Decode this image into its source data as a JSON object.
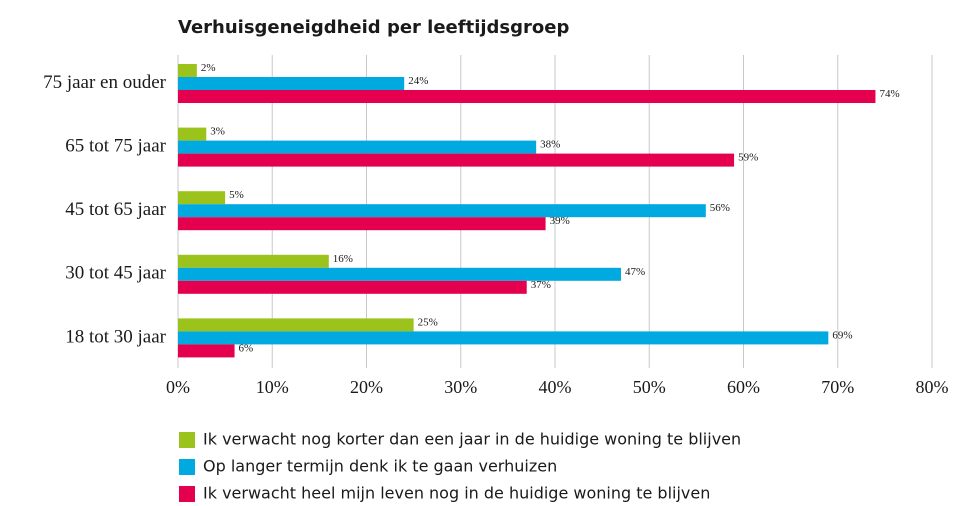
{
  "chart_data": {
    "type": "bar",
    "orientation": "horizontal",
    "title": "Verhuisgeneigdheid per leeftijdsgroep",
    "categories": [
      "75 jaar en ouder",
      "65 tot 75 jaar",
      "45 tot 65 jaar",
      "30 tot 45 jaar",
      "18 tot 30 jaar"
    ],
    "series": [
      {
        "name": "Ik verwacht nog korter dan een jaar in de huidige woning te blijven",
        "color": "#9bc31c",
        "values": [
          2,
          3,
          5,
          16,
          25
        ],
        "value_labels": [
          "2%",
          "3%",
          "5%",
          "16%",
          "25%"
        ]
      },
      {
        "name": "Op langer termijn denk ik te gaan verhuizen",
        "color": "#00a9e0",
        "values": [
          24,
          38,
          56,
          47,
          69
        ],
        "value_labels": [
          "24%",
          "38%",
          "56%",
          "47%",
          "69%"
        ]
      },
      {
        "name": "Ik verwacht heel mijn leven nog in de huidige woning te blijven",
        "color": "#e4004f",
        "values": [
          74,
          59,
          39,
          37,
          6
        ],
        "value_labels": [
          "74%",
          "59%",
          "39%",
          "37%",
          "6%"
        ]
      }
    ],
    "xlim": [
      0,
      80
    ],
    "xticks": [
      {
        "value": 0,
        "label": "0%"
      },
      {
        "value": 10,
        "label": "10%"
      },
      {
        "value": 20,
        "label": "20%"
      },
      {
        "value": 30,
        "label": "30%"
      },
      {
        "value": 40,
        "label": "40%"
      },
      {
        "value": 50,
        "label": "50%"
      },
      {
        "value": 60,
        "label": "60%"
      },
      {
        "value": 70,
        "label": "70%"
      },
      {
        "value": 80,
        "label": "80%"
      }
    ],
    "grid": true,
    "legend": "bottom"
  }
}
